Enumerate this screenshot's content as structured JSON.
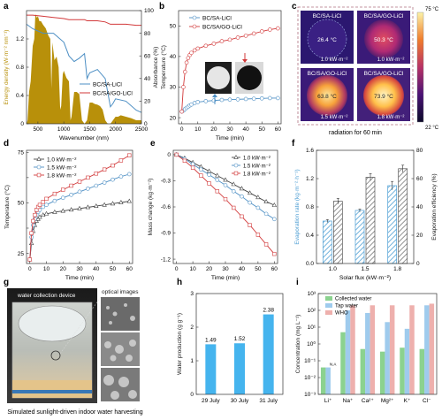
{
  "panel_letters": [
    "a",
    "b",
    "c",
    "d",
    "e",
    "f",
    "g",
    "h",
    "i"
  ],
  "colors": {
    "blue": "#4d8fc4",
    "red": "#d2393a",
    "gray": "#444444",
    "gold": "#b8900a",
    "bar_blue": "#4f9fd4",
    "bar_gray": "#8a8a8a",
    "h_bar": "#45b4ee",
    "i_collected": "#8bd28f",
    "i_tap": "#9fcbed",
    "i_who": "#eeb0ad"
  },
  "panel_c": {
    "colorbar_max": "75 °C",
    "colorbar_min": "22 °C",
    "caption": "radiation for 60 min",
    "tiles": [
      {
        "name": "BC/SA-LiCl",
        "temp": "26.4 °C",
        "flux": "1.0 kW·m⁻²"
      },
      {
        "name": "BC/SA/GO-LiCl",
        "temp": "50.3 °C",
        "flux": "1.0 kW·m⁻²"
      },
      {
        "name": "BC/SA/GO-LiCl",
        "temp": "63.8 °C",
        "flux": "1.5 kW·m⁻²"
      },
      {
        "name": "BC/SA/GO-LiCl",
        "temp": "73.9 °C",
        "flux": "1.8 kW·m⁻²"
      }
    ]
  },
  "panel_g": {
    "label_device": "water collection device",
    "label_optical": "optical images",
    "caption": "Simulated sunlight-driven indoor water harvesting"
  },
  "chart_data": [
    {
      "panel": "a",
      "type": "area",
      "xlabel": "Wavenumber (nm)",
      "ylabel": "Energy density (W·m⁻² nm⁻¹)",
      "y2label": "Absorbance (%)",
      "xlim": [
        280,
        2500
      ],
      "ylim": [
        0,
        1.6
      ],
      "y2lim": [
        0,
        100
      ],
      "xticks": [
        500,
        1000,
        1500,
        2000,
        2500
      ],
      "yticks": [
        0.0,
        0.4,
        0.8,
        1.2
      ],
      "y2ticks": [
        0,
        20,
        40,
        60,
        80,
        100
      ],
      "solar_spectrum": {
        "x": [
          280,
          300,
          330,
          360,
          400,
          430,
          450,
          480,
          500,
          530,
          560,
          600,
          650,
          700,
          740,
          760,
          780,
          820,
          860,
          900,
          930,
          950,
          980,
          1000,
          1050,
          1100,
          1130,
          1150,
          1200,
          1250,
          1300,
          1350,
          1400,
          1450,
          1500,
          1550,
          1600,
          1650,
          1700,
          1750,
          1800,
          1850,
          1900,
          1950,
          2000,
          2050,
          2100,
          2200,
          2300,
          2400,
          2500
        ],
        "y": [
          0.0,
          0.05,
          0.45,
          0.6,
          1.1,
          1.2,
          1.55,
          1.5,
          1.52,
          1.45,
          1.45,
          1.4,
          1.35,
          1.25,
          1.2,
          0.5,
          1.15,
          0.9,
          0.95,
          0.8,
          0.2,
          0.25,
          0.7,
          0.75,
          0.65,
          0.6,
          0.05,
          0.1,
          0.45,
          0.45,
          0.42,
          0.05,
          0.0,
          0.05,
          0.3,
          0.3,
          0.28,
          0.27,
          0.25,
          0.2,
          0.05,
          0.0,
          0.0,
          0.05,
          0.1,
          0.1,
          0.12,
          0.1,
          0.08,
          0.05,
          0.05
        ]
      },
      "series": [
        {
          "name": "BC/SA-LiCl",
          "x": [
            280,
            400,
            600,
            800,
            1000,
            1100,
            1200,
            1300,
            1400,
            1450,
            1500,
            1650,
            1800,
            1900,
            1950,
            2000,
            2200,
            2400,
            2500
          ],
          "y": [
            88,
            84,
            80,
            80,
            72,
            60,
            55,
            58,
            62,
            40,
            45,
            48,
            40,
            15,
            18,
            22,
            20,
            12,
            10
          ]
        },
        {
          "name": "BC/SA/GO-LiCl",
          "x": [
            280,
            400,
            600,
            800,
            1000,
            1100,
            1200,
            1300,
            1400,
            1450,
            1500,
            1650,
            1800,
            1900,
            1950,
            2000,
            2200,
            2400,
            2500
          ],
          "y": [
            96,
            96,
            95,
            94,
            93,
            92,
            92,
            92,
            92,
            91,
            91,
            91,
            90,
            88,
            88,
            88,
            88,
            87,
            87
          ]
        }
      ]
    },
    {
      "panel": "b",
      "type": "line",
      "xlabel": "Time (min)",
      "ylabel": "Temperature (°C)",
      "xlim": [
        -2,
        62
      ],
      "ylim": [
        18,
        55
      ],
      "xticks": [
        0,
        10,
        20,
        30,
        40,
        50,
        60
      ],
      "yticks": [
        20,
        30,
        40,
        50
      ],
      "series": [
        {
          "name": "BC/SA-LiCl",
          "x": [
            0,
            1,
            2,
            3,
            4,
            5,
            6,
            8,
            10,
            15,
            20,
            25,
            30,
            35,
            40,
            45,
            50,
            55,
            60
          ],
          "y": [
            22,
            22.3,
            22.8,
            23.2,
            23.6,
            24,
            24.3,
            24.8,
            25.1,
            25.4,
            25.6,
            25.8,
            25.9,
            26,
            26.1,
            26.2,
            26.3,
            26.4,
            26.4
          ]
        },
        {
          "name": "BC/SA/GO-LiCl",
          "x": [
            0,
            1,
            2,
            3,
            4,
            5,
            6,
            8,
            10,
            15,
            20,
            25,
            30,
            35,
            40,
            45,
            50,
            55,
            60
          ],
          "y": [
            22,
            30,
            35,
            38,
            39.5,
            40.5,
            41.2,
            42,
            42.6,
            43.5,
            44.2,
            45,
            45.5,
            46.2,
            46.8,
            47.5,
            48.2,
            48.8,
            49.2
          ]
        }
      ]
    },
    {
      "panel": "d",
      "type": "line",
      "xlabel": "Time (min)",
      "ylabel": "Temperature (°C)",
      "xlim": [
        -2,
        62
      ],
      "ylim": [
        20,
        76
      ],
      "xticks": [
        0,
        10,
        20,
        30,
        40,
        50,
        60
      ],
      "yticks": [
        25,
        37.5,
        50,
        62.5,
        75
      ],
      "ytick_labels": [
        "25",
        "",
        "50",
        "",
        "75"
      ],
      "series": [
        {
          "name": "1.0 kW·m⁻²",
          "x": [
            0,
            1,
            2,
            3,
            4,
            5,
            6,
            8,
            10,
            15,
            20,
            25,
            30,
            35,
            40,
            45,
            50,
            55,
            60
          ],
          "y": [
            22,
            30,
            36,
            39,
            41,
            42,
            43,
            44,
            44.6,
            45.4,
            46,
            46.6,
            47.2,
            47.8,
            48.4,
            49,
            49.6,
            50.2,
            50.8
          ]
        },
        {
          "name": "1.5 kW·m⁻²",
          "x": [
            0,
            1,
            2,
            3,
            4,
            5,
            6,
            8,
            10,
            15,
            20,
            25,
            30,
            35,
            40,
            45,
            50,
            55,
            60
          ],
          "y": [
            22,
            33,
            39,
            42,
            44,
            45.5,
            46.5,
            48,
            49,
            51,
            52.5,
            54,
            55.5,
            57,
            58.5,
            60,
            61.5,
            63,
            64.2
          ]
        },
        {
          "name": "1.8 kW·m⁻²",
          "x": [
            0,
            1,
            2,
            3,
            4,
            5,
            6,
            8,
            10,
            15,
            20,
            25,
            30,
            35,
            40,
            45,
            50,
            55,
            60
          ],
          "y": [
            22,
            35,
            41,
            44,
            46.5,
            48,
            49,
            50.5,
            52,
            54.5,
            56.5,
            58.5,
            60.5,
            62.5,
            64.5,
            66.5,
            68.5,
            71,
            73.5
          ]
        }
      ]
    },
    {
      "panel": "e",
      "type": "line",
      "xlabel": "Time (min)",
      "ylabel": "Mass change (kg·m⁻²)",
      "xlim": [
        -2,
        62
      ],
      "ylim": [
        -1.25,
        0.05
      ],
      "xticks": [
        0,
        10,
        20,
        30,
        40,
        50,
        60
      ],
      "yticks": [
        0.0,
        -0.3,
        -0.6,
        -0.9,
        -1.2
      ],
      "series": [
        {
          "name": "1.0 kW·m⁻²",
          "x": [
            0,
            5,
            10,
            15,
            20,
            25,
            30,
            35,
            40,
            45,
            50,
            55,
            60
          ],
          "y": [
            0,
            -0.04,
            -0.09,
            -0.14,
            -0.19,
            -0.24,
            -0.29,
            -0.34,
            -0.39,
            -0.44,
            -0.49,
            -0.54,
            -0.58
          ]
        },
        {
          "name": "1.5 kW·m⁻²",
          "x": [
            0,
            5,
            10,
            15,
            20,
            25,
            30,
            35,
            40,
            45,
            50,
            55,
            60
          ],
          "y": [
            0,
            -0.05,
            -0.11,
            -0.17,
            -0.23,
            -0.29,
            -0.35,
            -0.42,
            -0.48,
            -0.55,
            -0.61,
            -0.68,
            -0.74
          ]
        },
        {
          "name": "1.8 kW·m⁻²",
          "x": [
            0,
            5,
            10,
            15,
            20,
            25,
            30,
            35,
            40,
            45,
            50,
            55,
            60
          ],
          "y": [
            0,
            -0.07,
            -0.15,
            -0.24,
            -0.33,
            -0.42,
            -0.51,
            -0.61,
            -0.71,
            -0.81,
            -0.92,
            -1.03,
            -1.14
          ]
        }
      ]
    },
    {
      "panel": "f",
      "type": "bar",
      "xlabel": "Solar flux (kW·m⁻²)",
      "ylabel": "Evaporation rate (kg·m⁻²·h⁻¹)",
      "y2label": "Evaporation efficiency (%)",
      "categories": [
        "1.0",
        "1.5",
        "1.8"
      ],
      "ylim": [
        0,
        1.6
      ],
      "y2lim": [
        0,
        80
      ],
      "yticks": [
        0.0,
        0.4,
        0.8,
        1.2,
        1.6
      ],
      "y2ticks": [
        0,
        20,
        40,
        60,
        80
      ],
      "series": [
        {
          "name": "Evaporation rate",
          "axis": "left",
          "values": [
            0.6,
            0.75,
            1.1
          ],
          "errors": [
            0.02,
            0.02,
            0.06
          ]
        },
        {
          "name": "Evaporation efficiency",
          "axis": "right",
          "values": [
            44,
            61,
            67
          ],
          "errors": [
            2,
            2.5,
            2.5
          ]
        }
      ]
    },
    {
      "panel": "h",
      "type": "bar",
      "xlabel": "",
      "ylabel": "Water production (g g⁻¹)",
      "categories": [
        "29 July",
        "30 July",
        "31 July"
      ],
      "values": [
        1.49,
        1.52,
        2.38
      ],
      "value_labels": [
        "1.49",
        "1.52",
        "2.38"
      ],
      "ylim": [
        0,
        3
      ],
      "yticks": [
        0,
        1,
        2,
        3
      ]
    },
    {
      "panel": "i",
      "type": "bar",
      "ylabel": "Concentration (mg L⁻¹)",
      "yscale": "log",
      "ylim": [
        0.001,
        1000
      ],
      "yticks": [
        0.001,
        0.01,
        0.1,
        1,
        10,
        100,
        1000
      ],
      "ytick_labels": [
        "10⁻³",
        "10⁻²",
        "10⁻¹",
        "10⁰",
        "10¹",
        "10²",
        "10³"
      ],
      "categories": [
        "Li⁺",
        "Na⁺",
        "Ca²⁺",
        "Mg²⁺",
        "K⁺",
        "Cl⁻"
      ],
      "na_label": "N.A",
      "series": [
        {
          "name": "Collected water",
          "values": [
            0.04,
            5,
            0.5,
            0.35,
            0.6,
            0.5
          ]
        },
        {
          "name": "Tap water",
          "values": [
            0.04,
            100,
            70,
            20,
            8,
            200
          ]
        },
        {
          "name": "WHO",
          "values": [
            null,
            200,
            200,
            200,
            200,
            250
          ]
        }
      ]
    }
  ]
}
